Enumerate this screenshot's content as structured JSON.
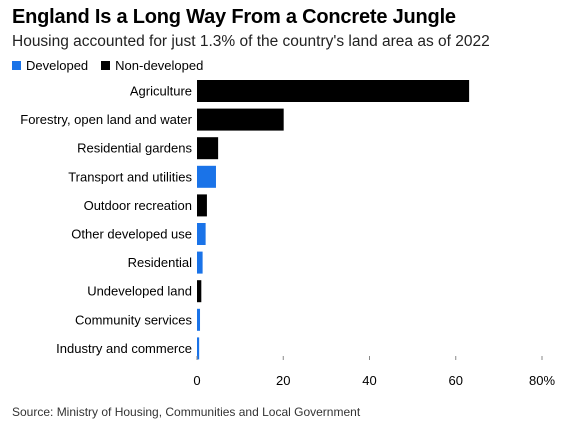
{
  "title": "England Is a Long Way From a Concrete Jungle",
  "subtitle": "Housing accounted for just 1.3% of the country's land area as of 2022",
  "source": "Source: Ministry of Housing, Communities and Local Government",
  "legend": [
    {
      "label": "Developed",
      "color": "#1a73e8"
    },
    {
      "label": "Non-developed",
      "color": "#000000"
    }
  ],
  "chart_data": {
    "type": "bar",
    "orientation": "horizontal",
    "title": "England Is a Long Way From a Concrete Jungle",
    "subtitle": "Housing accounted for just 1.3% of the country's land area as of 2022",
    "xlim": [
      0,
      80
    ],
    "xticks": [
      "0",
      "20",
      "40",
      "60",
      "80%"
    ],
    "xtick_values": [
      0,
      20,
      40,
      60,
      80
    ],
    "grid": false,
    "legend_position": "top-left",
    "categories": [
      "Agriculture",
      "Forestry, open land and water",
      "Residential gardens",
      "Transport and utilities",
      "Outdoor recreation",
      "Other developed use",
      "Residential",
      "Undeveloped land",
      "Community services",
      "Industry and commerce"
    ],
    "values": [
      63.1,
      20.1,
      4.9,
      4.4,
      2.3,
      2.0,
      1.3,
      1.0,
      0.7,
      0.5
    ],
    "groups": [
      "Non-developed",
      "Non-developed",
      "Non-developed",
      "Developed",
      "Non-developed",
      "Developed",
      "Developed",
      "Non-developed",
      "Developed",
      "Developed"
    ]
  }
}
